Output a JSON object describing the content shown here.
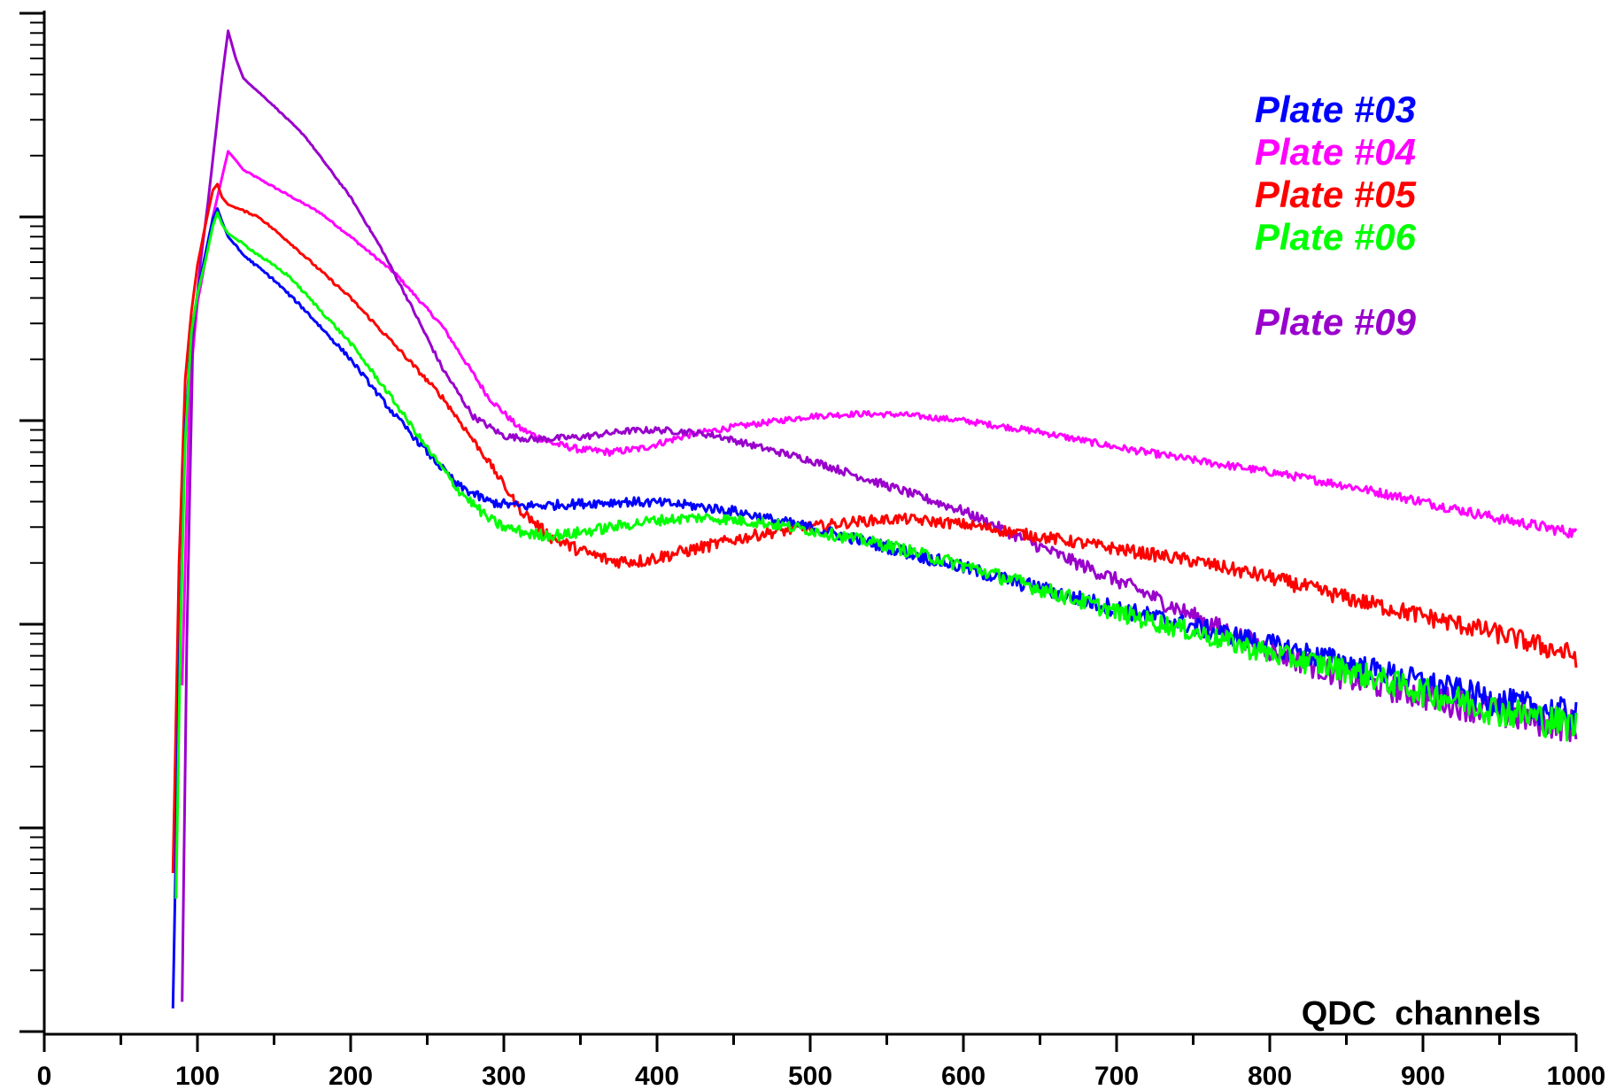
{
  "chart_data": {
    "type": "line",
    "title": "",
    "xlabel": "QDC  channels",
    "ylabel": "",
    "xlim": [
      0,
      1000
    ],
    "x_ticks": [
      0,
      100,
      200,
      300,
      400,
      500,
      600,
      700,
      800,
      900,
      1000
    ],
    "x_tick_labels": [
      "0",
      "100",
      "200",
      "300",
      "400",
      "500",
      "600",
      "700",
      "800",
      "900",
      "1000"
    ],
    "ylim": [
      0.7,
      150000
    ],
    "yscale": "log",
    "y_tick_labels_shown": false,
    "grid": false,
    "legend_position": "top-right",
    "series": [
      {
        "name": "Plate #03",
        "color": "#0000ff",
        "points": [
          [
            84,
            1.3
          ],
          [
            88,
            60
          ],
          [
            92,
            900
          ],
          [
            96,
            2700
          ],
          [
            100,
            4200
          ],
          [
            105,
            6500
          ],
          [
            110,
            9800
          ],
          [
            113,
            11000
          ],
          [
            116,
            9500
          ],
          [
            120,
            8000
          ],
          [
            130,
            6500
          ],
          [
            150,
            4900
          ],
          [
            170,
            3500
          ],
          [
            200,
            2000
          ],
          [
            225,
            1150
          ],
          [
            250,
            700
          ],
          [
            270,
            480
          ],
          [
            290,
            400
          ],
          [
            310,
            380
          ],
          [
            330,
            385
          ],
          [
            360,
            395
          ],
          [
            380,
            400
          ],
          [
            400,
            395
          ],
          [
            420,
            385
          ],
          [
            450,
            360
          ],
          [
            480,
            320
          ],
          [
            500,
            300
          ],
          [
            550,
            240
          ],
          [
            600,
            190
          ],
          [
            650,
            150
          ],
          [
            700,
            120
          ],
          [
            750,
            98
          ],
          [
            800,
            80
          ],
          [
            850,
            65
          ],
          [
            900,
            52
          ],
          [
            950,
            42
          ],
          [
            1000,
            36
          ]
        ]
      },
      {
        "name": "Plate #04",
        "color": "#ff00ff",
        "points": [
          [
            90,
            50
          ],
          [
            95,
            1500
          ],
          [
            100,
            3800
          ],
          [
            105,
            6000
          ],
          [
            110,
            10000
          ],
          [
            115,
            14500
          ],
          [
            120,
            21000
          ],
          [
            125,
            19000
          ],
          [
            130,
            17000
          ],
          [
            150,
            14000
          ],
          [
            180,
            10500
          ],
          [
            200,
            8000
          ],
          [
            230,
            5200
          ],
          [
            260,
            2900
          ],
          [
            290,
            1300
          ],
          [
            310,
            920
          ],
          [
            330,
            780
          ],
          [
            350,
            720
          ],
          [
            370,
            700
          ],
          [
            390,
            730
          ],
          [
            420,
            850
          ],
          [
            450,
            930
          ],
          [
            480,
            1000
          ],
          [
            500,
            1050
          ],
          [
            530,
            1080
          ],
          [
            560,
            1070
          ],
          [
            600,
            1000
          ],
          [
            650,
            880
          ],
          [
            700,
            740
          ],
          [
            750,
            640
          ],
          [
            800,
            560
          ],
          [
            850,
            480
          ],
          [
            900,
            400
          ],
          [
            950,
            330
          ],
          [
            1000,
            280
          ]
        ]
      },
      {
        "name": "Plate #05",
        "color": "#ff0000",
        "points": [
          [
            84,
            6
          ],
          [
            88,
            200
          ],
          [
            92,
            1600
          ],
          [
            96,
            3400
          ],
          [
            100,
            5800
          ],
          [
            105,
            9000
          ],
          [
            110,
            13500
          ],
          [
            113,
            14500
          ],
          [
            116,
            12500
          ],
          [
            120,
            11500
          ],
          [
            140,
            10000
          ],
          [
            160,
            7500
          ],
          [
            200,
            4000
          ],
          [
            230,
            2300
          ],
          [
            260,
            1300
          ],
          [
            290,
            630
          ],
          [
            310,
            370
          ],
          [
            330,
            270
          ],
          [
            350,
            230
          ],
          [
            370,
            205
          ],
          [
            390,
            205
          ],
          [
            420,
            230
          ],
          [
            450,
            260
          ],
          [
            470,
            280
          ],
          [
            500,
            300
          ],
          [
            530,
            320
          ],
          [
            560,
            330
          ],
          [
            600,
            310
          ],
          [
            650,
            270
          ],
          [
            700,
            235
          ],
          [
            750,
            205
          ],
          [
            800,
            170
          ],
          [
            850,
            135
          ],
          [
            900,
            110
          ],
          [
            950,
            90
          ],
          [
            1000,
            70
          ]
        ]
      },
      {
        "name": "Plate #06",
        "color": "#00ff00",
        "points": [
          [
            86,
            4.5
          ],
          [
            89,
            100
          ],
          [
            92,
            800
          ],
          [
            96,
            2700
          ],
          [
            100,
            4200
          ],
          [
            105,
            6000
          ],
          [
            110,
            9000
          ],
          [
            113,
            10500
          ],
          [
            116,
            9200
          ],
          [
            120,
            8300
          ],
          [
            140,
            6500
          ],
          [
            160,
            5100
          ],
          [
            200,
            2400
          ],
          [
            225,
            1350
          ],
          [
            250,
            730
          ],
          [
            270,
            460
          ],
          [
            290,
            330
          ],
          [
            300,
            300
          ],
          [
            320,
            275
          ],
          [
            340,
            275
          ],
          [
            370,
            300
          ],
          [
            400,
            325
          ],
          [
            430,
            335
          ],
          [
            470,
            315
          ],
          [
            500,
            290
          ],
          [
            550,
            245
          ],
          [
            600,
            195
          ],
          [
            650,
            150
          ],
          [
            700,
            115
          ],
          [
            750,
            92
          ],
          [
            800,
            72
          ],
          [
            850,
            60
          ],
          [
            900,
            47
          ],
          [
            950,
            38
          ],
          [
            1000,
            32
          ]
        ]
      },
      {
        "name": "Plate #09",
        "color": "#9900cc",
        "points": [
          [
            90,
            1.4
          ],
          [
            93,
            80
          ],
          [
            97,
            2500
          ],
          [
            102,
            6000
          ],
          [
            107,
            12000
          ],
          [
            112,
            26000
          ],
          [
            116,
            48000
          ],
          [
            120,
            82000
          ],
          [
            125,
            60000
          ],
          [
            130,
            48000
          ],
          [
            150,
            35000
          ],
          [
            170,
            25000
          ],
          [
            200,
            12500
          ],
          [
            220,
            7000
          ],
          [
            240,
            3600
          ],
          [
            260,
            1800
          ],
          [
            280,
            1050
          ],
          [
            300,
            840
          ],
          [
            320,
            810
          ],
          [
            350,
            830
          ],
          [
            380,
            890
          ],
          [
            400,
            900
          ],
          [
            420,
            880
          ],
          [
            440,
            840
          ],
          [
            470,
            730
          ],
          [
            500,
            640
          ],
          [
            550,
            480
          ],
          [
            600,
            360
          ],
          [
            650,
            240
          ],
          [
            700,
            165
          ],
          [
            750,
            110
          ],
          [
            800,
            75
          ],
          [
            850,
            55
          ],
          [
            900,
            45
          ],
          [
            950,
            37
          ],
          [
            1000,
            32
          ]
        ]
      }
    ]
  }
}
